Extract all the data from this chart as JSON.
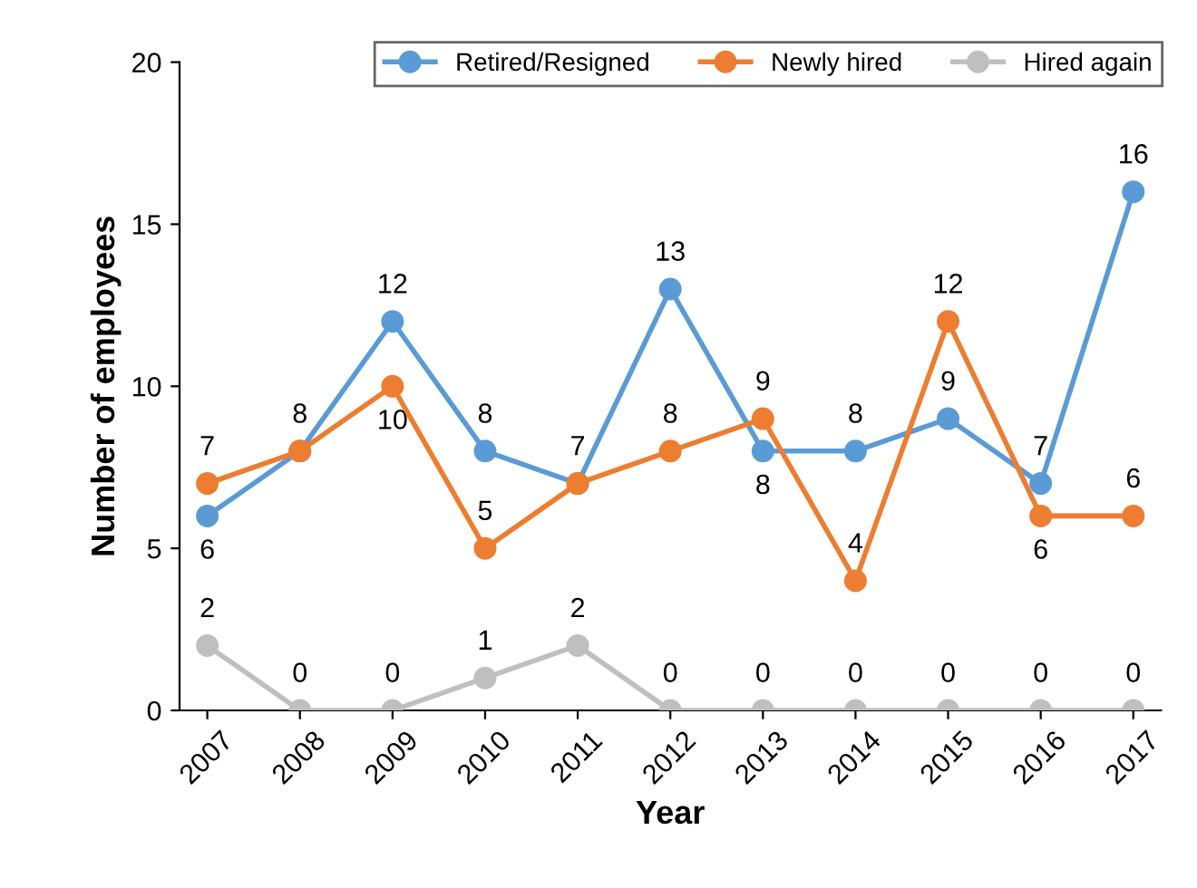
{
  "chart_data": {
    "type": "line",
    "xlabel": "Year",
    "ylabel": "Number of employees",
    "categories": [
      "2007",
      "2008",
      "2009",
      "2010",
      "2011",
      "2012",
      "2013",
      "2014",
      "2015",
      "2016",
      "2017"
    ],
    "series": [
      {
        "name": "Retired/Resigned",
        "color": "#5b9bd5",
        "values": [
          6,
          8,
          12,
          8,
          7,
          13,
          8,
          8,
          9,
          7,
          16
        ]
      },
      {
        "name": "Newly hired",
        "color": "#ed7d31",
        "values": [
          7,
          8,
          10,
          5,
          7,
          8,
          9,
          4,
          12,
          6,
          6
        ],
        "value_labels": [
          "7",
          null,
          "10",
          "5",
          null,
          "8",
          "9",
          "4",
          "12",
          "6",
          "6"
        ]
      },
      {
        "name": "Hired again",
        "color": "#bfbfbf",
        "values": [
          2,
          0,
          0,
          1,
          2,
          0,
          0,
          0,
          0,
          0,
          0
        ]
      }
    ],
    "ylim": [
      0,
      20
    ],
    "yticks": [
      0,
      5,
      10,
      15,
      20
    ],
    "grid": false,
    "legend": "top",
    "marker": "circle",
    "line_style": "solid",
    "data_labels": true
  }
}
